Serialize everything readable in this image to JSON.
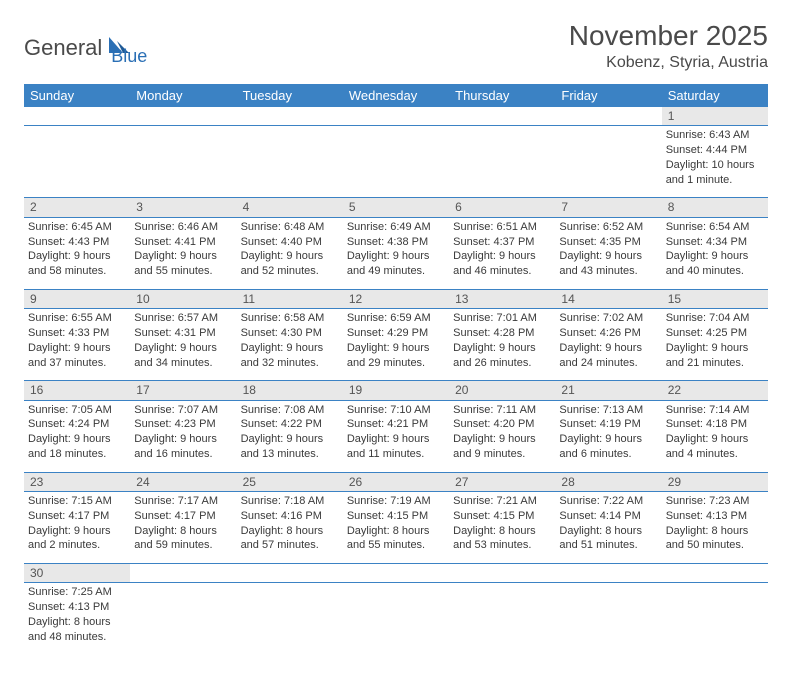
{
  "logo": {
    "dark": "General",
    "blue": "Blue"
  },
  "title": "November 2025",
  "location": "Kobenz, Styria, Austria",
  "colors": {
    "header_bg": "#3b82c4",
    "header_text": "#ffffff",
    "daynum_bg": "#e8e8e8",
    "rule": "#3b82c4",
    "text": "#3a3a3a",
    "title_text": "#4a4a4a",
    "logo_blue": "#2a6fb5"
  },
  "day_labels": [
    "Sunday",
    "Monday",
    "Tuesday",
    "Wednesday",
    "Thursday",
    "Friday",
    "Saturday"
  ],
  "weeks": [
    {
      "nums": [
        "",
        "",
        "",
        "",
        "",
        "",
        "1"
      ],
      "cells": [
        null,
        null,
        null,
        null,
        null,
        null,
        {
          "sr": "Sunrise: 6:43 AM",
          "ss": "Sunset: 4:44 PM",
          "dl": "Daylight: 10 hours and 1 minute."
        }
      ]
    },
    {
      "nums": [
        "2",
        "3",
        "4",
        "5",
        "6",
        "7",
        "8"
      ],
      "cells": [
        {
          "sr": "Sunrise: 6:45 AM",
          "ss": "Sunset: 4:43 PM",
          "dl": "Daylight: 9 hours and 58 minutes."
        },
        {
          "sr": "Sunrise: 6:46 AM",
          "ss": "Sunset: 4:41 PM",
          "dl": "Daylight: 9 hours and 55 minutes."
        },
        {
          "sr": "Sunrise: 6:48 AM",
          "ss": "Sunset: 4:40 PM",
          "dl": "Daylight: 9 hours and 52 minutes."
        },
        {
          "sr": "Sunrise: 6:49 AM",
          "ss": "Sunset: 4:38 PM",
          "dl": "Daylight: 9 hours and 49 minutes."
        },
        {
          "sr": "Sunrise: 6:51 AM",
          "ss": "Sunset: 4:37 PM",
          "dl": "Daylight: 9 hours and 46 minutes."
        },
        {
          "sr": "Sunrise: 6:52 AM",
          "ss": "Sunset: 4:35 PM",
          "dl": "Daylight: 9 hours and 43 minutes."
        },
        {
          "sr": "Sunrise: 6:54 AM",
          "ss": "Sunset: 4:34 PM",
          "dl": "Daylight: 9 hours and 40 minutes."
        }
      ]
    },
    {
      "nums": [
        "9",
        "10",
        "11",
        "12",
        "13",
        "14",
        "15"
      ],
      "cells": [
        {
          "sr": "Sunrise: 6:55 AM",
          "ss": "Sunset: 4:33 PM",
          "dl": "Daylight: 9 hours and 37 minutes."
        },
        {
          "sr": "Sunrise: 6:57 AM",
          "ss": "Sunset: 4:31 PM",
          "dl": "Daylight: 9 hours and 34 minutes."
        },
        {
          "sr": "Sunrise: 6:58 AM",
          "ss": "Sunset: 4:30 PM",
          "dl": "Daylight: 9 hours and 32 minutes."
        },
        {
          "sr": "Sunrise: 6:59 AM",
          "ss": "Sunset: 4:29 PM",
          "dl": "Daylight: 9 hours and 29 minutes."
        },
        {
          "sr": "Sunrise: 7:01 AM",
          "ss": "Sunset: 4:28 PM",
          "dl": "Daylight: 9 hours and 26 minutes."
        },
        {
          "sr": "Sunrise: 7:02 AM",
          "ss": "Sunset: 4:26 PM",
          "dl": "Daylight: 9 hours and 24 minutes."
        },
        {
          "sr": "Sunrise: 7:04 AM",
          "ss": "Sunset: 4:25 PM",
          "dl": "Daylight: 9 hours and 21 minutes."
        }
      ]
    },
    {
      "nums": [
        "16",
        "17",
        "18",
        "19",
        "20",
        "21",
        "22"
      ],
      "cells": [
        {
          "sr": "Sunrise: 7:05 AM",
          "ss": "Sunset: 4:24 PM",
          "dl": "Daylight: 9 hours and 18 minutes."
        },
        {
          "sr": "Sunrise: 7:07 AM",
          "ss": "Sunset: 4:23 PM",
          "dl": "Daylight: 9 hours and 16 minutes."
        },
        {
          "sr": "Sunrise: 7:08 AM",
          "ss": "Sunset: 4:22 PM",
          "dl": "Daylight: 9 hours and 13 minutes."
        },
        {
          "sr": "Sunrise: 7:10 AM",
          "ss": "Sunset: 4:21 PM",
          "dl": "Daylight: 9 hours and 11 minutes."
        },
        {
          "sr": "Sunrise: 7:11 AM",
          "ss": "Sunset: 4:20 PM",
          "dl": "Daylight: 9 hours and 9 minutes."
        },
        {
          "sr": "Sunrise: 7:13 AM",
          "ss": "Sunset: 4:19 PM",
          "dl": "Daylight: 9 hours and 6 minutes."
        },
        {
          "sr": "Sunrise: 7:14 AM",
          "ss": "Sunset: 4:18 PM",
          "dl": "Daylight: 9 hours and 4 minutes."
        }
      ]
    },
    {
      "nums": [
        "23",
        "24",
        "25",
        "26",
        "27",
        "28",
        "29"
      ],
      "cells": [
        {
          "sr": "Sunrise: 7:15 AM",
          "ss": "Sunset: 4:17 PM",
          "dl": "Daylight: 9 hours and 2 minutes."
        },
        {
          "sr": "Sunrise: 7:17 AM",
          "ss": "Sunset: 4:17 PM",
          "dl": "Daylight: 8 hours and 59 minutes."
        },
        {
          "sr": "Sunrise: 7:18 AM",
          "ss": "Sunset: 4:16 PM",
          "dl": "Daylight: 8 hours and 57 minutes."
        },
        {
          "sr": "Sunrise: 7:19 AM",
          "ss": "Sunset: 4:15 PM",
          "dl": "Daylight: 8 hours and 55 minutes."
        },
        {
          "sr": "Sunrise: 7:21 AM",
          "ss": "Sunset: 4:15 PM",
          "dl": "Daylight: 8 hours and 53 minutes."
        },
        {
          "sr": "Sunrise: 7:22 AM",
          "ss": "Sunset: 4:14 PM",
          "dl": "Daylight: 8 hours and 51 minutes."
        },
        {
          "sr": "Sunrise: 7:23 AM",
          "ss": "Sunset: 4:13 PM",
          "dl": "Daylight: 8 hours and 50 minutes."
        }
      ]
    },
    {
      "nums": [
        "30",
        "",
        "",
        "",
        "",
        "",
        ""
      ],
      "cells": [
        {
          "sr": "Sunrise: 7:25 AM",
          "ss": "Sunset: 4:13 PM",
          "dl": "Daylight: 8 hours and 48 minutes."
        },
        null,
        null,
        null,
        null,
        null,
        null
      ]
    }
  ]
}
